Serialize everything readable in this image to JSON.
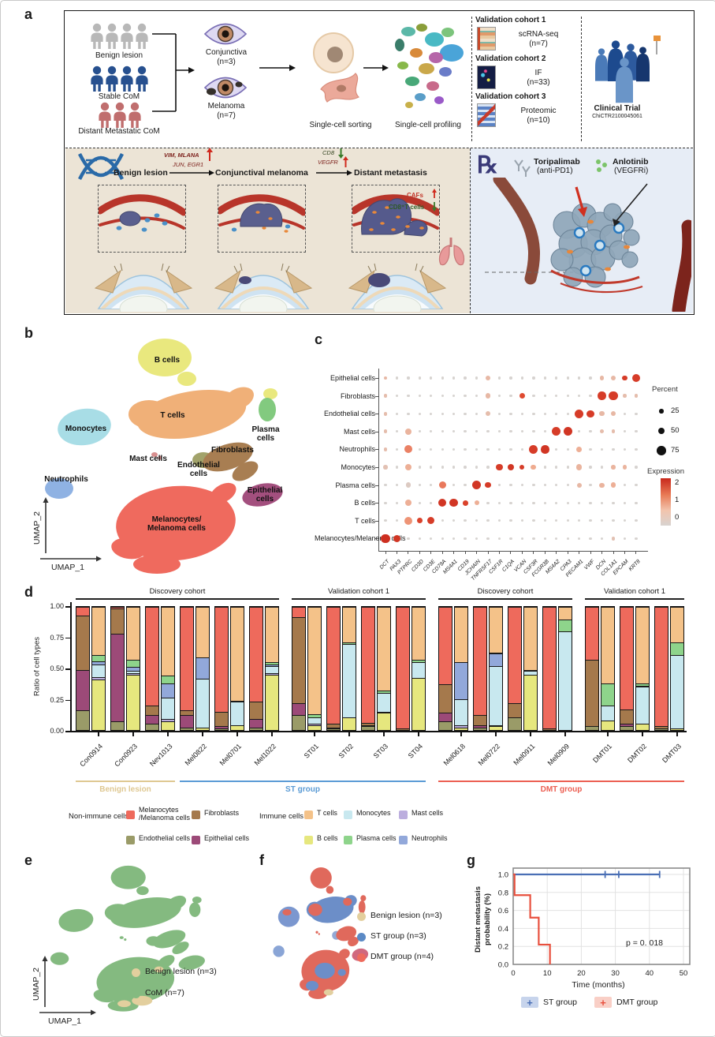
{
  "panels": {
    "a": "a",
    "b": "b",
    "c": "c",
    "d": "d",
    "e": "e",
    "f": "f",
    "g": "g"
  },
  "panel_a": {
    "cohorts": [
      {
        "label": "Benign lesion",
        "color": "#b8b8b8",
        "count": 4
      },
      {
        "label": "Stable CoM",
        "color": "#27508f",
        "count": 4
      },
      {
        "label": "Distant Metastatic CoM",
        "color": "#c06e6e",
        "count": 3
      }
    ],
    "tissues": [
      {
        "label": "Conjunctiva",
        "n": "(n=3)"
      },
      {
        "label": "Melanoma",
        "n": "(n=7)"
      }
    ],
    "sorting_label": "Single-cell sorting",
    "profiling_label": "Single-cell profiling",
    "validation": [
      {
        "title": "Validation cohort 1",
        "method": "scRNA-seq",
        "n": "(n=7)"
      },
      {
        "title": "Validation cohort 2",
        "method": "IF",
        "n": "(n=33)"
      },
      {
        "title": "Validation cohort 3",
        "method": "Proteomic",
        "n": "(n=10)"
      }
    ],
    "clinical_trial": {
      "title": "Clinical Trial",
      "registry": "ChiCTR2100045061"
    },
    "progression": {
      "stage1": "Benign lesion",
      "stage2": "Conjunctival melanoma",
      "stage3": "Distant metastasis",
      "arrow1_up_genes": "VIM, MLANA",
      "arrow1_genes": "JUN, EGR1",
      "arrow2_down_gene": "CD8",
      "arrow2_up_gene": "VEGFR",
      "met_up": "CAFs",
      "met_down": "CD8⁺T cells"
    },
    "treatment": {
      "rx": "℞",
      "drug1": "Toripalimab",
      "drug1_target": "(anti-PD1)",
      "drug2": "Anlotinib",
      "drug2_target": "(VEGFRi)"
    }
  },
  "panel_b": {
    "x_label": "UMAP_1",
    "y_label": "UMAP_2",
    "clusters": [
      {
        "label": "B cells",
        "color": "#e9e87e"
      },
      {
        "label": "T cells",
        "color": "#f0b078"
      },
      {
        "label": "Plasma\ncells",
        "color": "#82ca7f"
      },
      {
        "label": "Monocytes",
        "color": "#a8dde6"
      },
      {
        "label": "Neutrophils",
        "color": "#8fb2e3"
      },
      {
        "label": "Mast cells",
        "color": "#d88f8f"
      },
      {
        "label": "Endothelial\ncells",
        "color": "#a2a36b"
      },
      {
        "label": "Fibroblasts",
        "color": "#a87e52"
      },
      {
        "label": "Epithelial\ncells",
        "color": "#a34f7e"
      },
      {
        "label": "Melanocytes/\nMelanoma cells",
        "color": "#ef6a5e"
      }
    ]
  },
  "panel_e": {
    "x_label": "UMAP_1",
    "y_label": "UMAP_2",
    "legend": [
      {
        "label": "Benign lesion (n=3)",
        "color": "#e3cf9e"
      },
      {
        "label": "CoM (n=7)",
        "color": "#84ba80"
      }
    ]
  },
  "panel_f": {
    "legend": [
      {
        "label": "Benign lesion (n=3)",
        "color": "#e3cf9e"
      },
      {
        "label": "ST group (n=3)",
        "color": "#5b8ac5"
      },
      {
        "label": "DMT group (n=4)",
        "color": "#ee6a5c"
      }
    ]
  },
  "chart_data": [
    {
      "type": "heatmap",
      "name": "marker-gene-dotplot",
      "rows": [
        "Epithelial cells",
        "Fibroblasts",
        "Endothelial cells",
        "Mast cells",
        "Neutrophils",
        "Monocytes",
        "Plasma cells",
        "B cells",
        "T cells",
        "Melanocytes/Melanoma cells"
      ],
      "genes": [
        "DCT",
        "PAX3",
        "PTPRC",
        "CD3D",
        "CD3E",
        "CD79A",
        "MS4A1",
        "CD19",
        "JCHAIN",
        "TNFRSF17",
        "CSF1R",
        "C1QA",
        "VCAN",
        "CSF3R",
        "FCGR3B",
        "MS4A2",
        "CPA3",
        "PECAM1",
        "VWF",
        "DCN",
        "COL1A1",
        "EPCAM",
        "KRT8"
      ],
      "default_dot": {
        "percent": 8,
        "expression": 0
      },
      "dots": [
        [
          0,
          0,
          20,
          0.6
        ],
        [
          0,
          9,
          35,
          0.6
        ],
        [
          0,
          19,
          25,
          0.6
        ],
        [
          0,
          20,
          30,
          0.6
        ],
        [
          0,
          21,
          35,
          2.2
        ],
        [
          0,
          22,
          65,
          2.2
        ],
        [
          1,
          0,
          20,
          0.5
        ],
        [
          1,
          9,
          35,
          0.6
        ],
        [
          1,
          12,
          40,
          2.0
        ],
        [
          1,
          19,
          65,
          2.2
        ],
        [
          1,
          20,
          70,
          2.2
        ],
        [
          1,
          21,
          15,
          0.5
        ],
        [
          1,
          22,
          15,
          0.5
        ],
        [
          2,
          0,
          20,
          0.5
        ],
        [
          2,
          9,
          30,
          0.5
        ],
        [
          2,
          17,
          70,
          2.2
        ],
        [
          2,
          18,
          55,
          2.2
        ],
        [
          2,
          19,
          30,
          0.6
        ],
        [
          2,
          20,
          30,
          0.6
        ],
        [
          3,
          0,
          20,
          0.5
        ],
        [
          3,
          2,
          45,
          0.7
        ],
        [
          3,
          15,
          70,
          2.2
        ],
        [
          3,
          16,
          70,
          2.3
        ],
        [
          3,
          19,
          20,
          0.5
        ],
        [
          3,
          20,
          20,
          0.5
        ],
        [
          4,
          0,
          15,
          0.5
        ],
        [
          4,
          2,
          60,
          1.4
        ],
        [
          4,
          13,
          70,
          2.2
        ],
        [
          4,
          14,
          65,
          2.3
        ],
        [
          4,
          17,
          35,
          0.8
        ],
        [
          5,
          0,
          25,
          0.4
        ],
        [
          5,
          2,
          50,
          0.8
        ],
        [
          5,
          10,
          50,
          2.2
        ],
        [
          5,
          11,
          45,
          2.3
        ],
        [
          5,
          12,
          30,
          2.2
        ],
        [
          5,
          13,
          35,
          0.9
        ],
        [
          5,
          17,
          40,
          0.7
        ],
        [
          5,
          20,
          25,
          0.7
        ],
        [
          5,
          21,
          25,
          0.7
        ],
        [
          6,
          2,
          35,
          0.2
        ],
        [
          6,
          5,
          55,
          1.5
        ],
        [
          6,
          8,
          70,
          2.3
        ],
        [
          6,
          9,
          40,
          2.2
        ],
        [
          6,
          17,
          30,
          0.6
        ],
        [
          6,
          19,
          30,
          0.7
        ],
        [
          6,
          20,
          35,
          0.8
        ],
        [
          7,
          2,
          45,
          0.8
        ],
        [
          7,
          5,
          65,
          2.3
        ],
        [
          7,
          6,
          65,
          2.3
        ],
        [
          7,
          7,
          35,
          2.1
        ],
        [
          7,
          8,
          30,
          0.8
        ],
        [
          8,
          2,
          65,
          1.2
        ],
        [
          8,
          3,
          35,
          2.1
        ],
        [
          8,
          4,
          55,
          2.2
        ],
        [
          9,
          0,
          70,
          2.4
        ],
        [
          9,
          1,
          55,
          2.3
        ],
        [
          9,
          20,
          20,
          0.4
        ]
      ],
      "legend": {
        "percent_title": "Percent",
        "percent_sizes": [
          25,
          50,
          75
        ],
        "expression_title": "Expression",
        "expression_ticks": [
          2,
          1,
          0
        ]
      }
    },
    {
      "type": "bar",
      "name": "cell-type-ratio-stacked-bars",
      "stacked": true,
      "ylabel": "Ratio of cell types",
      "yticks": [
        "0.00",
        "0.25",
        "0.50",
        "0.75",
        "1.00"
      ],
      "samples": [
        "Con0914",
        "Con0923",
        "Nev1013",
        "Mel0822",
        "Mel0701",
        "Mel1022",
        "ST01",
        "ST02",
        "ST03",
        "ST04",
        "Mel0618",
        "Mel0722",
        "Mel0911",
        "Mel0909",
        "DMT01",
        "DMT02",
        "DMT03"
      ],
      "non_immune_order": [
        "Endothelial cells",
        "Epithelial cells",
        "Fibroblasts",
        "Melanocytes/Melanoma cells"
      ],
      "immune_order": [
        "B cells",
        "Mast cells",
        "Monocytes",
        "Neutrophils",
        "Plasma cells",
        "T cells"
      ],
      "non_immune": [
        [
          0.16,
          0.33,
          0.44,
          0.07
        ],
        [
          0.07,
          0.71,
          0.21,
          0.01
        ],
        [
          0.05,
          0.07,
          0.08,
          0.8
        ],
        [
          0.02,
          0.1,
          0.04,
          0.84
        ],
        [
          0.01,
          0.02,
          0.12,
          0.85
        ],
        [
          0.02,
          0.07,
          0.14,
          0.77
        ],
        [
          0.12,
          0.1,
          0.7,
          0.08
        ],
        [
          0.01,
          0.01,
          0.03,
          0.95
        ],
        [
          0.03,
          0.01,
          0.02,
          0.94
        ],
        [
          0.0,
          0.0,
          0.01,
          0.99
        ],
        [
          0.07,
          0.07,
          0.23,
          0.63
        ],
        [
          0.02,
          0.02,
          0.08,
          0.88
        ],
        [
          0.1,
          0.0,
          0.12,
          0.78
        ],
        [
          0.0,
          0.0,
          0.01,
          0.99
        ],
        [
          0.03,
          0.0,
          0.54,
          0.43
        ],
        [
          0.03,
          0.02,
          0.12,
          0.83
        ],
        [
          0.01,
          0.0,
          0.02,
          0.97
        ]
      ],
      "immune": [
        [
          0.41,
          0.02,
          0.1,
          0.03,
          0.05,
          0.39
        ],
        [
          0.45,
          0.01,
          0.02,
          0.03,
          0.06,
          0.43
        ],
        [
          0.07,
          0.02,
          0.17,
          0.12,
          0.06,
          0.56
        ],
        [
          0.02,
          0.0,
          0.4,
          0.17,
          0.0,
          0.41
        ],
        [
          0.04,
          0.0,
          0.19,
          0.01,
          0.0,
          0.76
        ],
        [
          0.45,
          0.01,
          0.06,
          0.01,
          0.02,
          0.45
        ],
        [
          0.04,
          0.01,
          0.05,
          0.0,
          0.03,
          0.87
        ],
        [
          0.1,
          0.0,
          0.6,
          0.0,
          0.01,
          0.29
        ],
        [
          0.14,
          0.01,
          0.15,
          0.0,
          0.02,
          0.68
        ],
        [
          0.42,
          0.0,
          0.13,
          0.0,
          0.02,
          0.43
        ],
        [
          0.02,
          0.02,
          0.21,
          0.3,
          0.0,
          0.45
        ],
        [
          0.03,
          0.01,
          0.48,
          0.1,
          0.01,
          0.37
        ],
        [
          0.45,
          0.0,
          0.03,
          0.0,
          0.01,
          0.51
        ],
        [
          0.0,
          0.0,
          0.8,
          0.0,
          0.1,
          0.1
        ],
        [
          0.08,
          0.0,
          0.12,
          0.0,
          0.18,
          0.62
        ],
        [
          0.05,
          0.0,
          0.3,
          0.01,
          0.02,
          0.62
        ],
        [
          0.01,
          0.0,
          0.6,
          0.0,
          0.1,
          0.29
        ]
      ],
      "cohorts": [
        {
          "label": "Discovery cohort",
          "from": 0,
          "to": 5
        },
        {
          "label": "Validation cohort 1",
          "from": 6,
          "to": 9
        },
        {
          "label": "Discovery cohort",
          "from": 10,
          "to": 13
        },
        {
          "label": "Validation cohort 1",
          "from": 14,
          "to": 16
        }
      ],
      "groups": [
        {
          "label": "Benign lesion",
          "from": 0,
          "to": 2,
          "color": "#dfc892"
        },
        {
          "label": "ST group",
          "from": 3,
          "to": 9,
          "color": "#5b9bd5"
        },
        {
          "label": "DMT group",
          "from": 10,
          "to": 16,
          "color": "#ec5f52"
        }
      ],
      "cell_colors": {
        "Melanocytes/Melanoma cells": "#ee6a5c",
        "Fibroblasts": "#a5794c",
        "Endothelial cells": "#9a9b68",
        "Epithelial cells": "#9c4a78",
        "T cells": "#f4c289",
        "B cells": "#e6e77e",
        "Monocytes": "#c8e8ef",
        "Plasma cells": "#8ed48b",
        "Mast cells": "#bcaede",
        "Neutrophils": "#92a8da"
      },
      "legend": {
        "non_immune_title": "Non-immune cells",
        "immune_title": "Immune cells",
        "non_immune_items": [
          [
            "Melanocytes\n/Melanoma cells",
            "Fibroblasts"
          ],
          [
            "Endothelial cells",
            "Epithelial cells"
          ]
        ],
        "immune_items": [
          [
            "T cells",
            "Monocytes",
            "Mast cells"
          ],
          [
            "B cells",
            "Plasma cells",
            "Neutrophils"
          ]
        ]
      }
    },
    {
      "type": "line",
      "name": "km-distant-metastasis",
      "xlabel": "Time (months)",
      "ylabel_lines": [
        "Distant metastasis",
        "probability (%)"
      ],
      "xticks": [
        0,
        10,
        20,
        30,
        40,
        50
      ],
      "yticks": [
        "0.0",
        "0.2",
        "0.4",
        "0.6",
        "0.8",
        "1.0"
      ],
      "pvalue": "p = 0. 018",
      "series": [
        {
          "name": "ST group",
          "color": "#4a6fb5",
          "fill": "#c7d4ec",
          "steps": [
            [
              0,
              1
            ],
            [
              43,
              1
            ]
          ],
          "censors": [
            27,
            31,
            43
          ]
        },
        {
          "name": "DMT group",
          "color": "#e8503e",
          "fill": "#f9cfc6",
          "steps": [
            [
              0,
              1
            ],
            [
              0.4,
              1
            ],
            [
              0.4,
              0.77
            ],
            [
              5,
              0.77
            ],
            [
              5,
              0.52
            ],
            [
              7.5,
              0.52
            ],
            [
              7.5,
              0.22
            ],
            [
              10.8,
              0.22
            ],
            [
              10.8,
              0
            ]
          ],
          "censors": []
        }
      ]
    }
  ]
}
